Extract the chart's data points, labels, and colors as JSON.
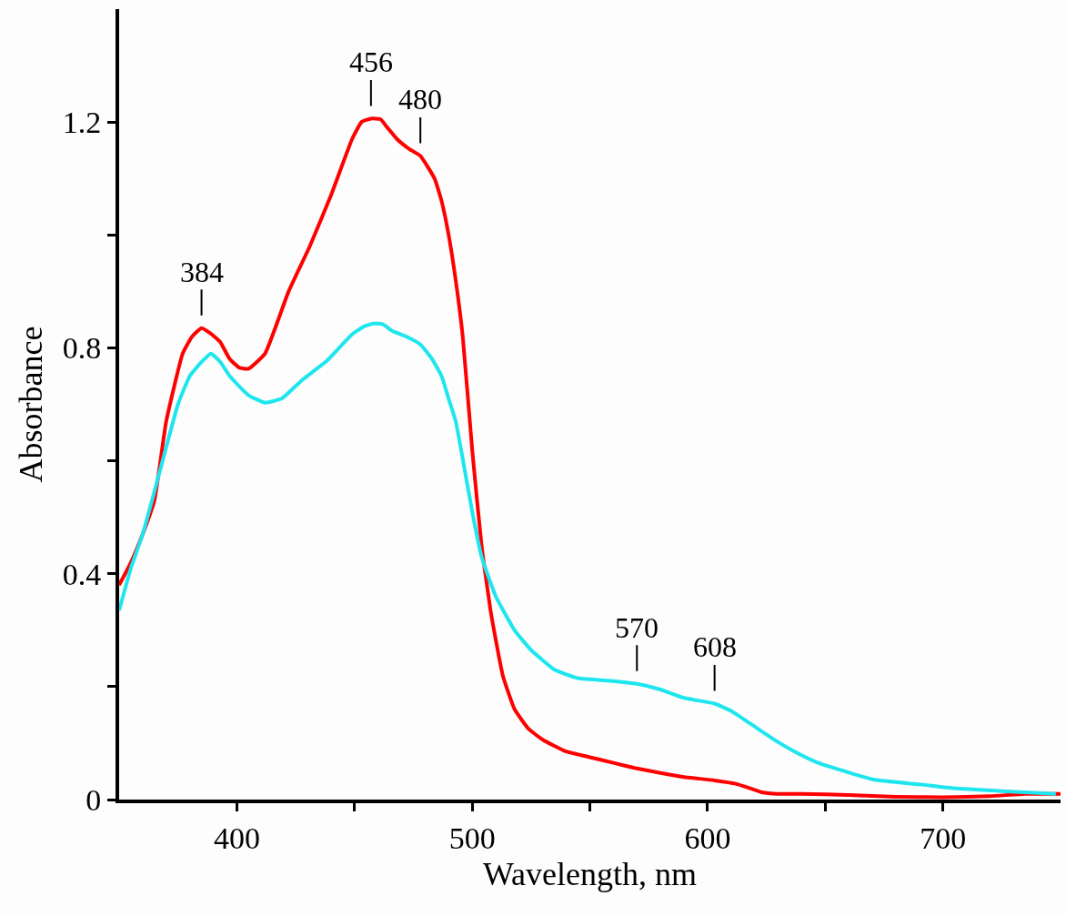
{
  "chart_data": {
    "type": "line",
    "xlabel": "Wavelength, nm",
    "ylabel": "Absorbance",
    "xlim": [
      350,
      750
    ],
    "xticks": [
      400,
      {
        "value": 450,
        "label": null
      },
      500,
      {
        "value": 550,
        "label": null
      },
      600,
      {
        "value": 650,
        "label": null
      },
      700
    ],
    "ylim": [
      0,
      1.4
    ],
    "yticks": [
      0,
      {
        "value": 0.2,
        "label": null
      },
      0.4,
      {
        "value": 0.6,
        "label": null
      },
      0.8,
      {
        "value": 1.0,
        "label": null
      },
      1.2
    ],
    "marker": "none",
    "line_style": "solid",
    "series": [
      {
        "color": "#ff0000",
        "x": [
          350,
          355,
          360,
          365,
          370,
          377,
          381,
          385,
          389,
          393,
          397,
          401,
          405,
          412,
          422,
          431,
          440,
          449,
          453,
          457,
          461,
          464,
          468,
          473,
          478,
          484,
          487,
          490,
          493,
          496,
          500,
          504,
          508,
          513,
          518,
          524,
          530,
          540,
          550,
          560,
          569,
          580,
          590,
          603,
          612,
          618,
          623,
          630,
          640,
          660,
          680,
          700,
          720,
          735,
          750
        ],
        "values": [
          0.38,
          0.42,
          0.47,
          0.53,
          0.67,
          0.79,
          0.82,
          0.835,
          0.825,
          0.81,
          0.78,
          0.765,
          0.763,
          0.79,
          0.9,
          0.98,
          1.07,
          1.17,
          1.2,
          1.206,
          1.205,
          1.19,
          1.17,
          1.153,
          1.14,
          1.1,
          1.06,
          1.0,
          0.92,
          0.82,
          0.62,
          0.45,
          0.33,
          0.22,
          0.16,
          0.125,
          0.106,
          0.085,
          0.075,
          0.065,
          0.056,
          0.047,
          0.04,
          0.034,
          0.028,
          0.02,
          0.013,
          0.01,
          0.01,
          0.008,
          0.005,
          0.004,
          0.006,
          0.01,
          0.01
        ]
      },
      {
        "color": "#1ee6ef",
        "x": [
          350,
          355,
          360,
          367,
          375,
          380,
          385,
          389,
          393,
          397,
          405,
          412,
          419,
          428,
          438,
          449,
          454,
          458,
          462,
          466,
          472,
          478,
          483,
          487,
          490,
          493,
          497,
          500,
          504,
          510,
          518,
          525,
          535,
          545,
          560,
          570,
          580,
          590,
          603,
          610,
          618,
          628,
          637,
          647,
          660,
          671,
          690,
          705,
          725,
          748
        ],
        "values": [
          0.335,
          0.41,
          0.47,
          0.577,
          0.7,
          0.75,
          0.775,
          0.79,
          0.775,
          0.75,
          0.716,
          0.703,
          0.71,
          0.744,
          0.776,
          0.824,
          0.838,
          0.843,
          0.842,
          0.83,
          0.82,
          0.806,
          0.78,
          0.75,
          0.71,
          0.67,
          0.58,
          0.51,
          0.43,
          0.36,
          0.3,
          0.265,
          0.23,
          0.215,
          0.21,
          0.205,
          0.195,
          0.18,
          0.17,
          0.157,
          0.135,
          0.107,
          0.085,
          0.065,
          0.048,
          0.035,
          0.027,
          0.02,
          0.015,
          0.01
        ]
      }
    ],
    "annotations": [
      {
        "text": "384",
        "x": 385,
        "y": 0.835
      },
      {
        "text": "456",
        "x": 457,
        "y": 1.206
      },
      {
        "text": "480",
        "x": 478,
        "y": 1.14
      },
      {
        "text": "570",
        "x": 570,
        "y": 0.205
      },
      {
        "text": "608",
        "x": 603,
        "y": 0.17
      }
    ]
  }
}
